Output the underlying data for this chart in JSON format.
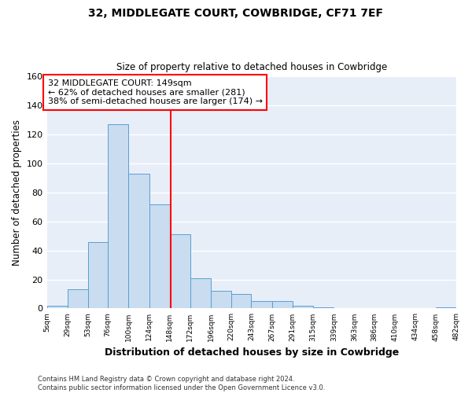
{
  "title": "32, MIDDLEGATE COURT, COWBRIDGE, CF71 7EF",
  "subtitle": "Size of property relative to detached houses in Cowbridge",
  "xlabel": "Distribution of detached houses by size in Cowbridge",
  "ylabel": "Number of detached properties",
  "bar_color": "#c9dcf0",
  "bar_edge_color": "#5a9fd4",
  "background_color": "#e8eef8",
  "fig_background_color": "#ffffff",
  "grid_color": "white",
  "vline_x": 149,
  "vline_color": "red",
  "annotation_line1": "32 MIDDLEGATE COURT: 149sqm",
  "annotation_line2": "← 62% of detached houses are smaller (281)",
  "annotation_line3": "38% of semi-detached houses are larger (174) →",
  "annotation_box_color": "white",
  "annotation_box_edge_color": "red",
  "footer_line1": "Contains HM Land Registry data © Crown copyright and database right 2024.",
  "footer_line2": "Contains public sector information licensed under the Open Government Licence v3.0.",
  "bin_edges": [
    5,
    29,
    53,
    76,
    100,
    124,
    148,
    172,
    196,
    220,
    243,
    267,
    291,
    315,
    339,
    363,
    386,
    410,
    434,
    458,
    482
  ],
  "bin_counts": [
    2,
    13,
    46,
    127,
    93,
    72,
    51,
    21,
    12,
    10,
    5,
    5,
    2,
    1,
    0,
    0,
    0,
    0,
    0,
    1
  ],
  "tick_labels": [
    "5sqm",
    "29sqm",
    "53sqm",
    "76sqm",
    "100sqm",
    "124sqm",
    "148sqm",
    "172sqm",
    "196sqm",
    "220sqm",
    "243sqm",
    "267sqm",
    "291sqm",
    "315sqm",
    "339sqm",
    "363sqm",
    "386sqm",
    "410sqm",
    "434sqm",
    "458sqm",
    "482sqm"
  ],
  "ylim": [
    0,
    160
  ],
  "yticks": [
    0,
    20,
    40,
    60,
    80,
    100,
    120,
    140,
    160
  ]
}
